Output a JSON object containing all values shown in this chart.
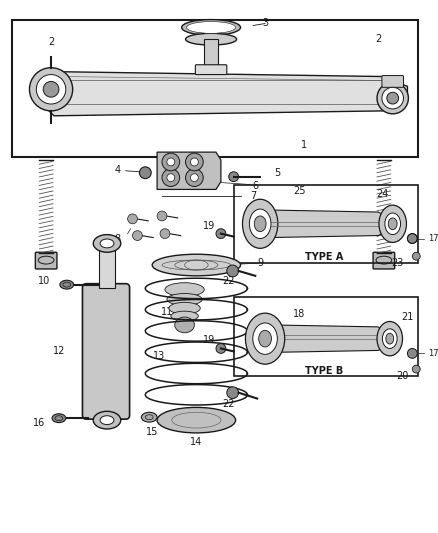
{
  "bg_color": "#ffffff",
  "line_color": "#1a1a1a",
  "gray_fill": "#d0d0d0",
  "gray_mid": "#aaaaaa",
  "gray_dark": "#888888",
  "fig_width": 4.38,
  "fig_height": 5.33,
  "dpi": 100
}
